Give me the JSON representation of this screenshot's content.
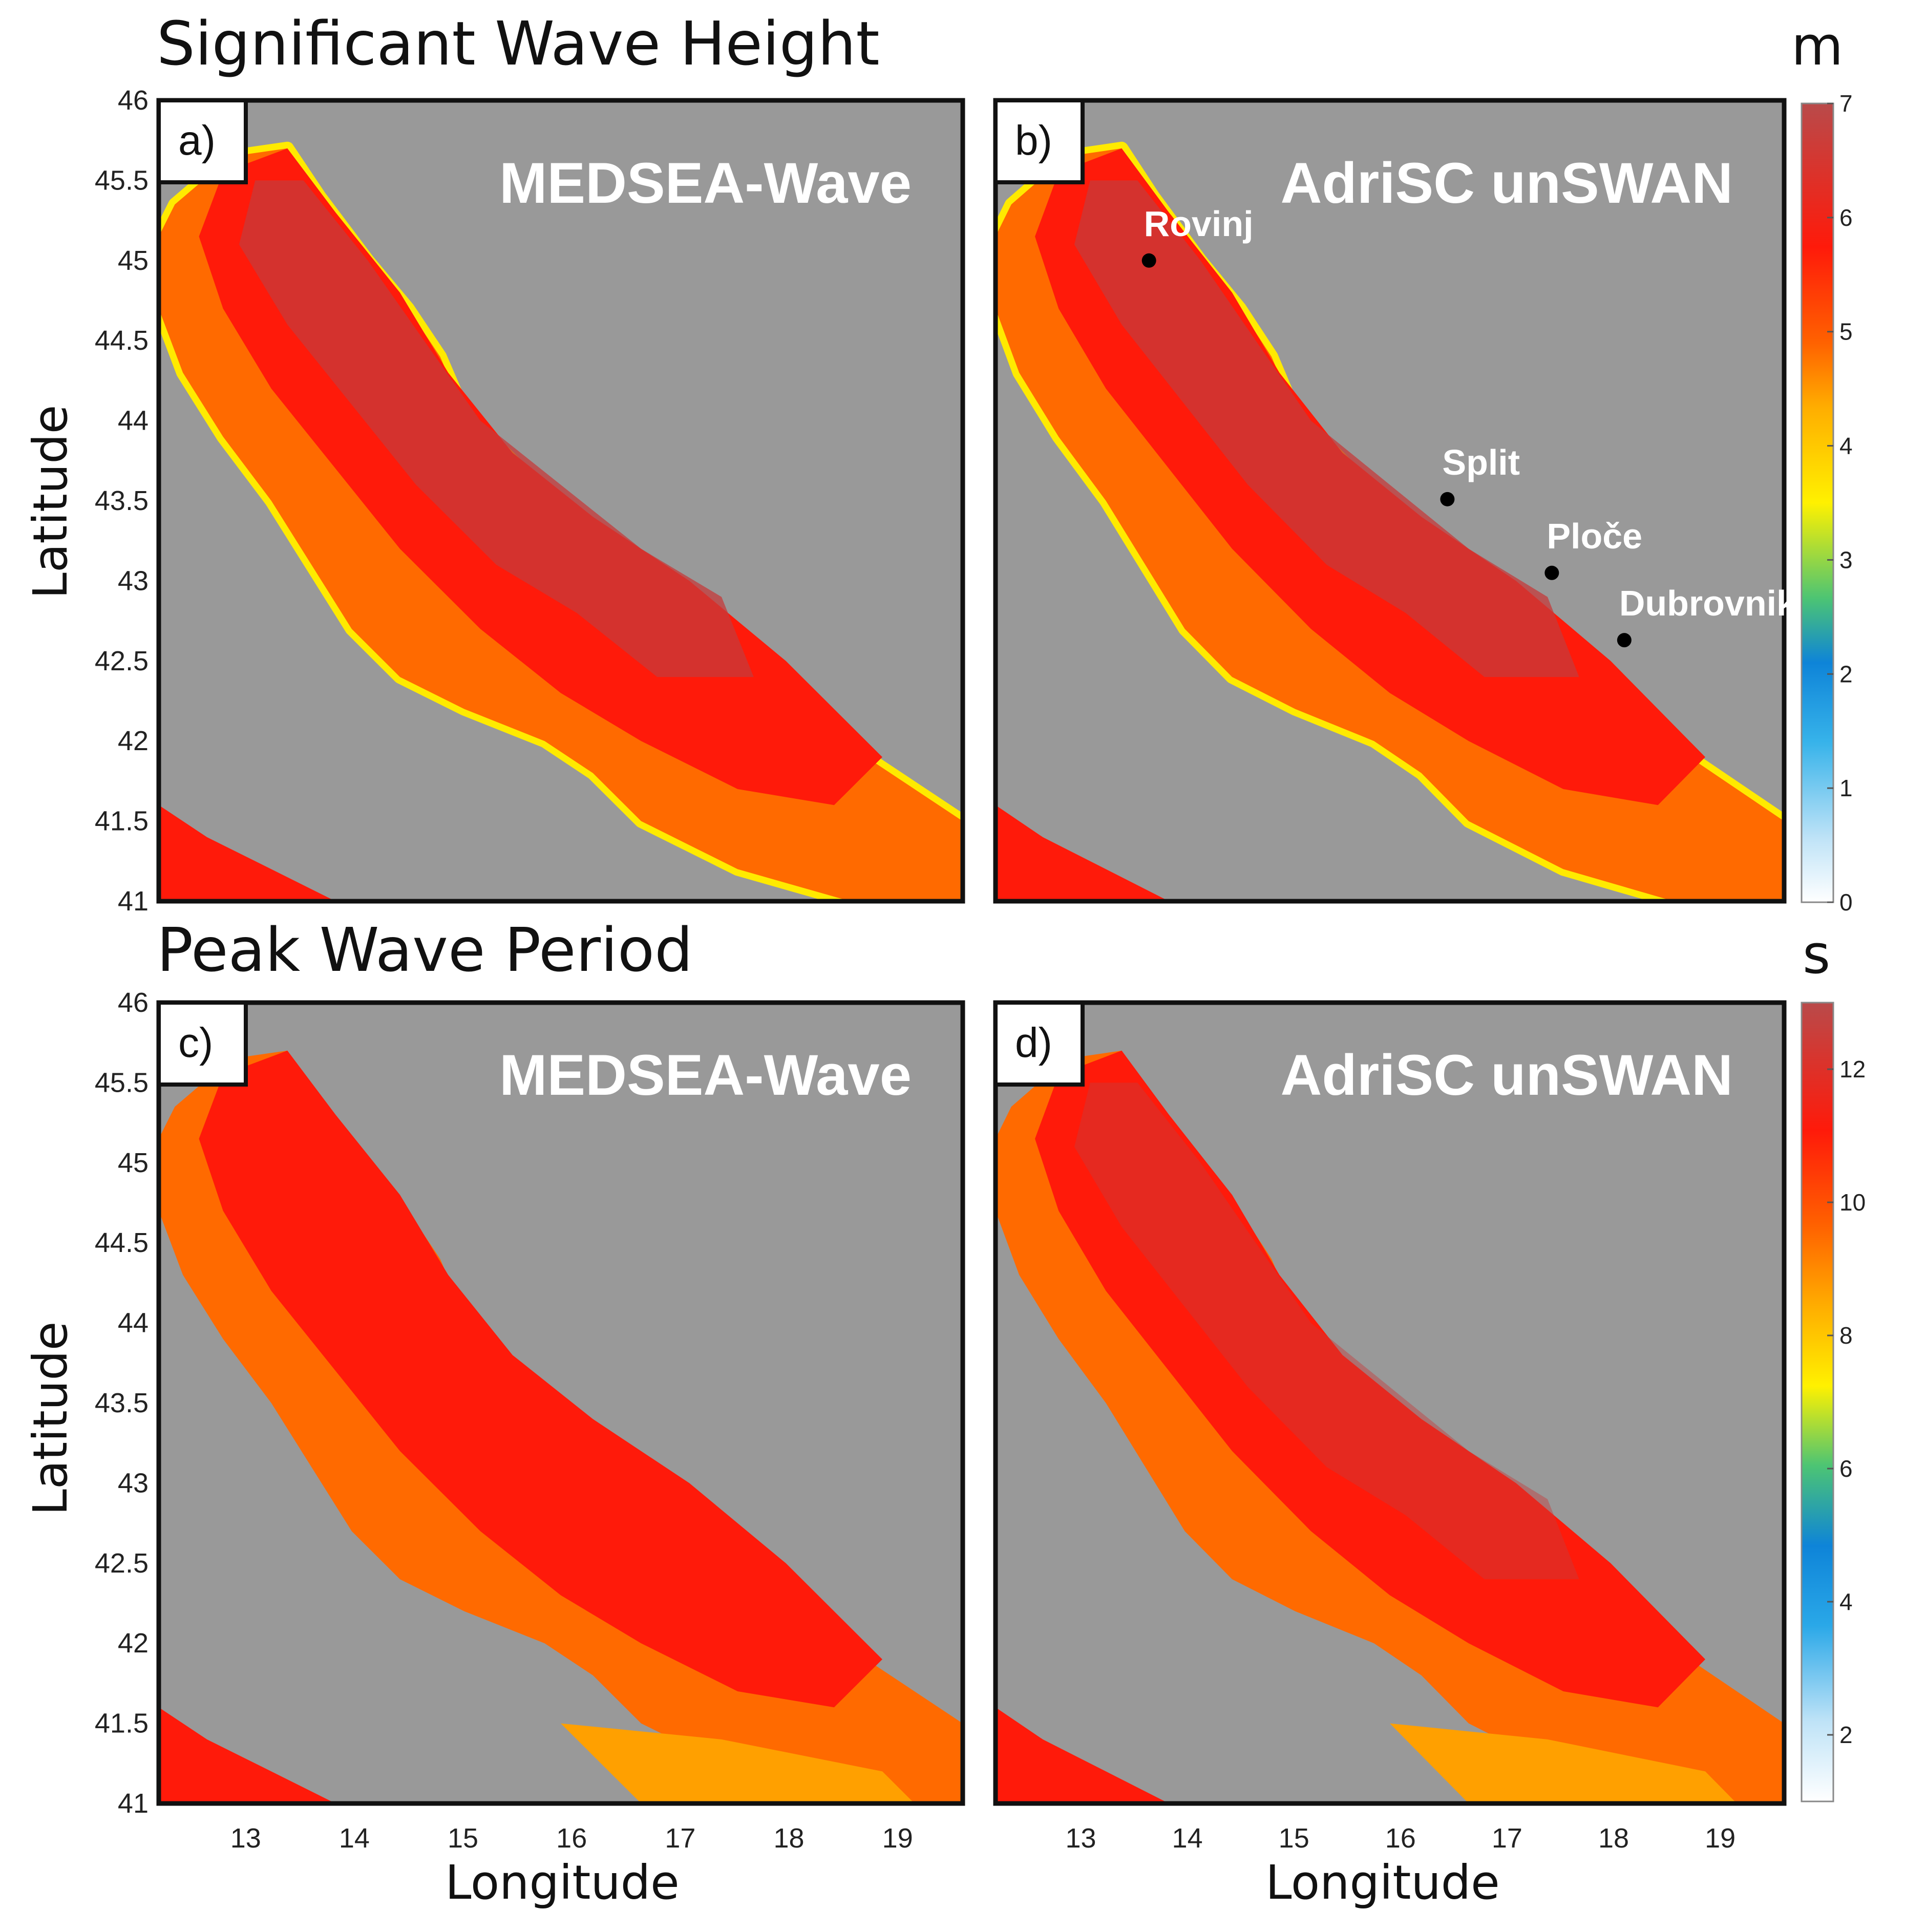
{
  "chart_data": {
    "type": "heatmap",
    "sections": [
      {
        "title": "Significant Wave Height",
        "unit": "m"
      },
      {
        "title": "Peak Wave Period",
        "unit": "s"
      }
    ],
    "panels": [
      {
        "label": "a)",
        "model": "MEDSEA-Wave",
        "variable": "Significant Wave Height"
      },
      {
        "label": "b)",
        "model": "AdriSC unSWAN",
        "variable": "Significant Wave Height"
      },
      {
        "label": "c)",
        "model": "MEDSEA-Wave",
        "variable": "Peak Wave Period"
      },
      {
        "label": "d)",
        "model": "AdriSC unSWAN",
        "variable": "Peak Wave Period"
      }
    ],
    "xlabel": "Longitude",
    "ylabel": "Latitude",
    "xlim": [
      12.2,
      19.6
    ],
    "ylim": [
      41,
      46
    ],
    "xticks": [
      "13",
      "14",
      "15",
      "16",
      "17",
      "18",
      "19"
    ],
    "yticks": [
      "46",
      "45.5",
      "45",
      "44.5",
      "44",
      "43.5",
      "43",
      "42.5",
      "42",
      "41.5",
      "41"
    ],
    "colorbars": [
      {
        "unit": "m",
        "range": [
          0,
          7
        ],
        "ticks": [
          "7",
          "6",
          "5",
          "4",
          "3",
          "2",
          "1",
          "0"
        ]
      },
      {
        "unit": "s",
        "range": [
          1,
          13
        ],
        "ticks": [
          "12",
          "10",
          "8",
          "6",
          "4",
          "2"
        ]
      }
    ],
    "locations": [
      {
        "name": "Rovinj",
        "lon": 13.64,
        "lat": 45.0
      },
      {
        "name": "Split",
        "lon": 16.44,
        "lat": 43.51
      },
      {
        "name": "Ploče",
        "lon": 17.42,
        "lat": 43.05
      },
      {
        "name": "Dubrovnik",
        "lon": 18.1,
        "lat": 42.63
      }
    ],
    "colors": {
      "land": "#999999",
      "wave_high": "#c53b3b",
      "wave_mid": "#ff1a0a",
      "wave_orange": "#ff6a00",
      "wave_yellow": "#ffea00",
      "wave_blue": "#1ea0e0"
    }
  }
}
